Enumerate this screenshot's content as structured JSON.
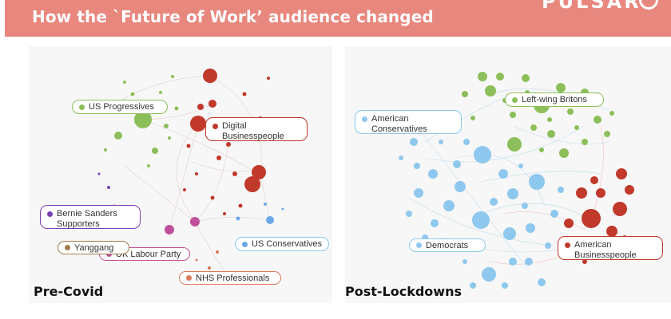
{
  "header": {
    "title": "How the `Future of Work’ audience changed",
    "logo_text": "PULSAR"
  },
  "colors": {
    "banner": "#e8877e",
    "green": "#8cbf5a",
    "red": "#c0392b",
    "blue": "#8ec8ee",
    "purple": "#7b3fb3",
    "pink": "#c0509a",
    "brown": "#a07a4a",
    "orange": "#d97a5a"
  },
  "panels": [
    {
      "label": "Pre-Covid",
      "tags": [
        {
          "text": "US Progressives",
          "color": "green"
        },
        {
          "text": "Digital Businesspeople",
          "color": "red"
        },
        {
          "text": "Bernie Sanders Supporters",
          "color": "purple"
        },
        {
          "text": "Yanggang",
          "color": "brown"
        },
        {
          "text": "UK Labour Party",
          "color": "pink"
        },
        {
          "text": "US Conservatives",
          "color": "blue"
        },
        {
          "text": "NHS Professionals",
          "color": "orange"
        }
      ]
    },
    {
      "label": "Post-Lockdowns",
      "tags": [
        {
          "text": "American Conservatives",
          "color": "blue"
        },
        {
          "text": "Left-wing Britons",
          "color": "green"
        },
        {
          "text": "Democrats",
          "color": "blue"
        },
        {
          "text": "American Businesspeople",
          "color": "red"
        }
      ]
    }
  ]
}
